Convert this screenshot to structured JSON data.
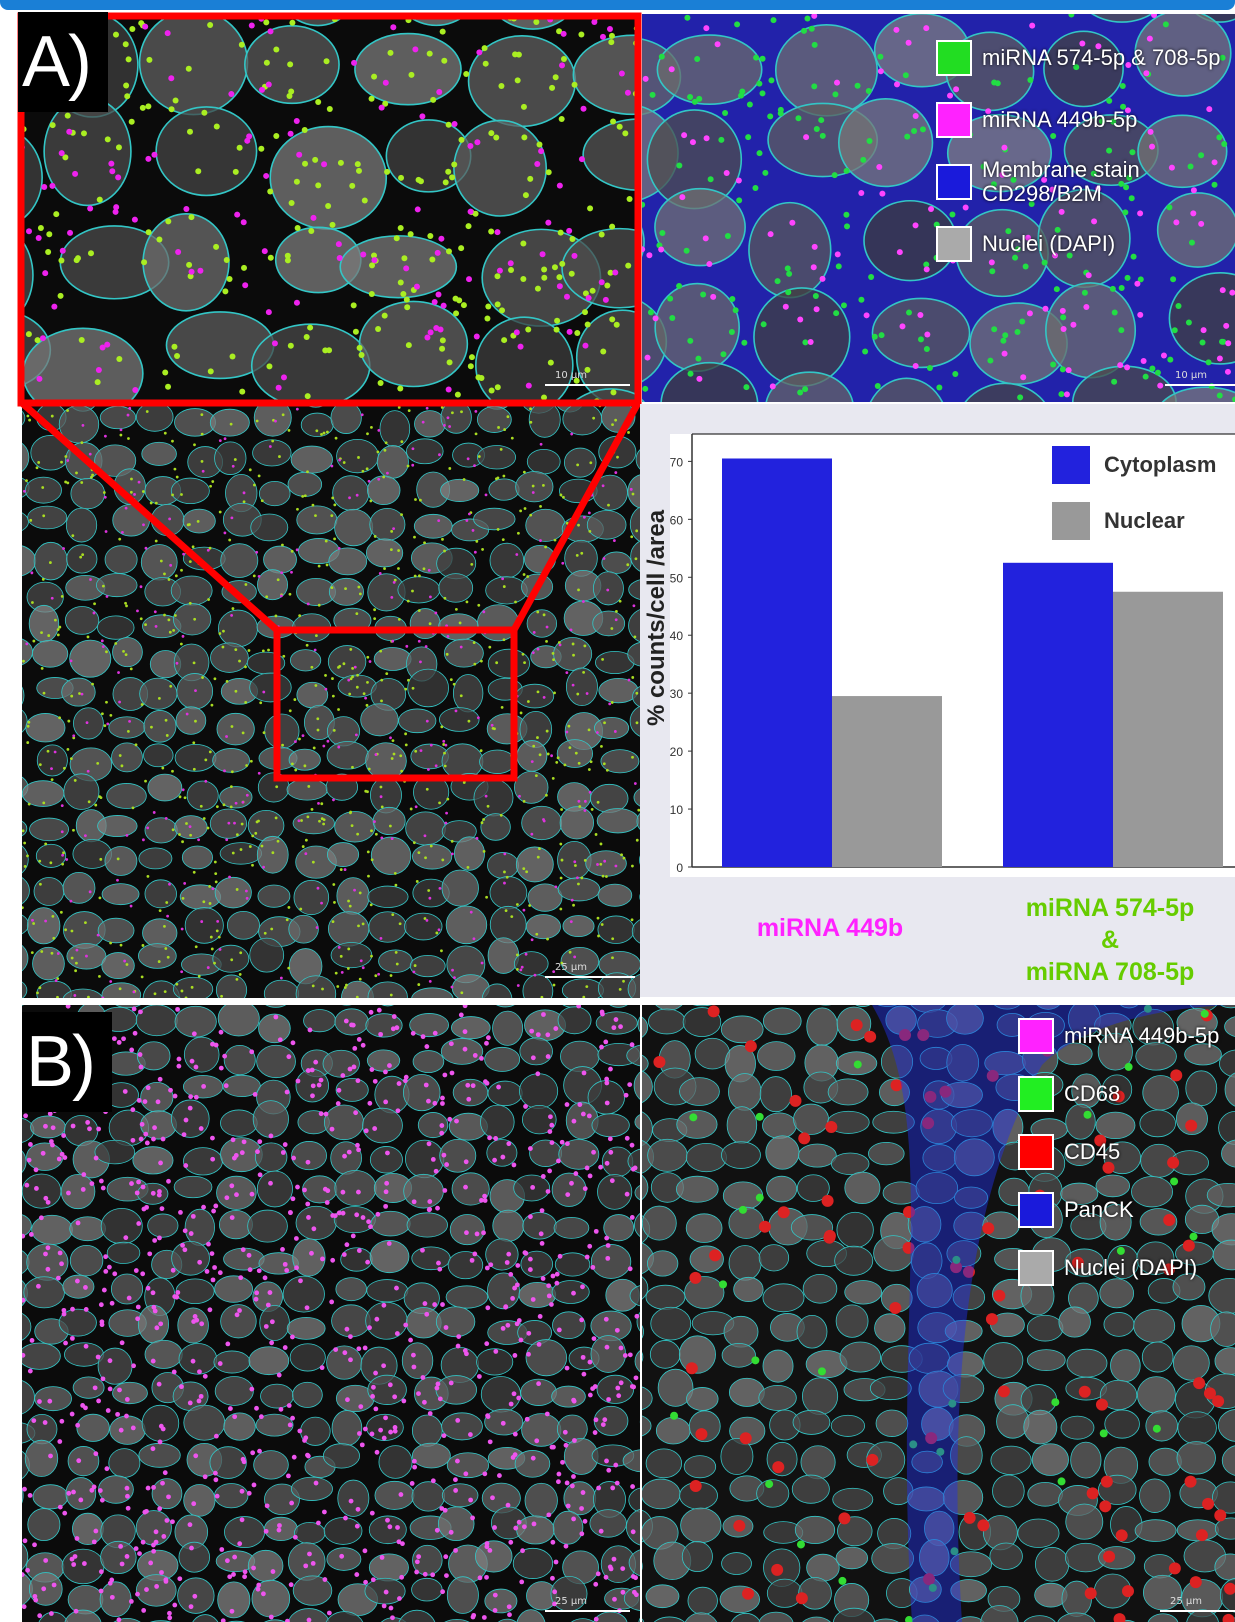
{
  "panel_labels": {
    "a": "A)",
    "b": "B)"
  },
  "legend_a": [
    {
      "label": "miRNA 574-5p & 708-5p",
      "color": "#22dd22"
    },
    {
      "label": "miRNA 449b-5p",
      "color": "#ff22ff"
    },
    {
      "label": "Membrane stain\nCD298/B2M",
      "color": "#1a1adb"
    },
    {
      "label": "Nuclei (DAPI)",
      "color": "#aaaaaa"
    }
  ],
  "legend_b": [
    {
      "label": "miRNA 449b-5p",
      "color": "#ff22ff"
    },
    {
      "label": "CD68",
      "color": "#22ee22"
    },
    {
      "label": "CD45",
      "color": "#ff0000"
    },
    {
      "label": "PanCK",
      "color": "#1a1adb"
    },
    {
      "label": "Nuclei (DAPI)",
      "color": "#aaaaaa"
    }
  ],
  "scalebars": {
    "a_zoom": "10 µm",
    "a_right": "10 µm",
    "a_overview": "25 µm",
    "b_left": "25 µm",
    "b_right": "25 µm"
  },
  "chart_data": {
    "type": "bar",
    "categories": [
      "miRNA 449b",
      "miRNA 574-5p\n&\nmiRNA 708-5p"
    ],
    "category_colors": [
      "#ff22ff",
      "#66cc00"
    ],
    "series": [
      {
        "name": "Cytoplasm",
        "values": [
          70.5,
          52.5
        ],
        "color": "#2222dd"
      },
      {
        "name": "Nuclear",
        "values": [
          29.5,
          47.5
        ],
        "color": "#999999"
      }
    ],
    "ylabel": "% counts/cell /area",
    "ylim": [
      0,
      73
    ],
    "yticks": [
      0,
      10,
      20,
      30,
      40,
      50,
      60,
      70
    ],
    "legend_position": "top-right",
    "grid": false
  }
}
